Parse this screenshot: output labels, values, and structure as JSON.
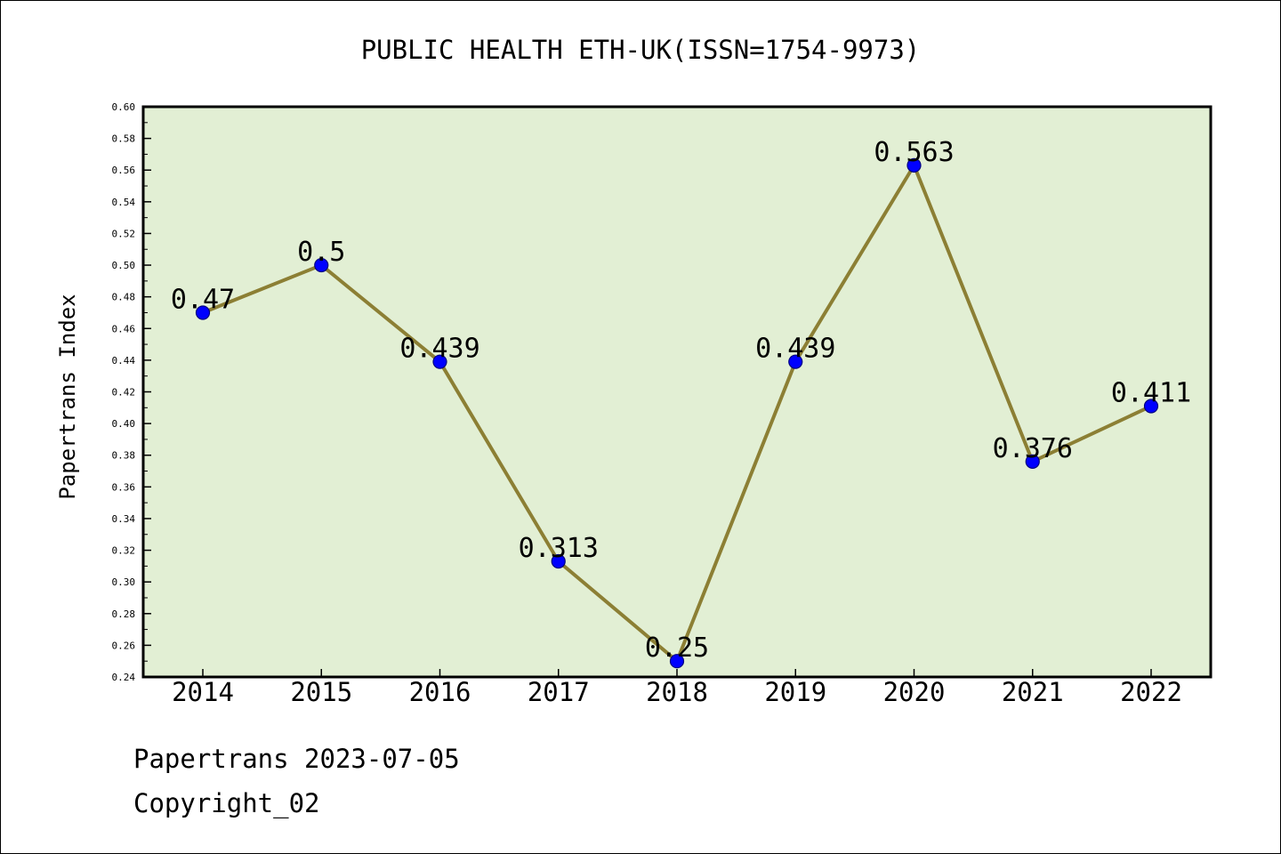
{
  "chart_data": {
    "type": "line",
    "title": "PUBLIC HEALTH ETH-UK(ISSN=1754-9973)",
    "ylabel": "Papertrans Index",
    "xlabel": "",
    "categories": [
      "2014",
      "2015",
      "2016",
      "2017",
      "2018",
      "2019",
      "2020",
      "2021",
      "2022"
    ],
    "series": [
      {
        "values": [
          0.47,
          0.5,
          0.439,
          0.313,
          0.25,
          0.439,
          0.563,
          0.376,
          0.411
        ],
        "labels": [
          "0.47",
          "0.5",
          "0.439",
          "0.313",
          "0.25",
          "0.439",
          "0.563",
          "0.376",
          "0.411"
        ]
      }
    ],
    "ylim": [
      0.24,
      0.6
    ],
    "yticks": [
      "0.24",
      "0.26",
      "0.28",
      "0.30",
      "0.32",
      "0.34",
      "0.36",
      "0.38",
      "0.40",
      "0.42",
      "0.44",
      "0.46",
      "0.48",
      "0.50",
      "0.52",
      "0.54",
      "0.56",
      "0.58",
      "0.60"
    ],
    "grid": false,
    "colors": {
      "plot_background": "#e2efd4",
      "line": "#8c7f34",
      "marker_fill": "#0000ff",
      "marker_stroke": "#000080"
    }
  },
  "footer": {
    "line1": "Papertrans 2023-07-05",
    "line2": "Copyright_02"
  }
}
